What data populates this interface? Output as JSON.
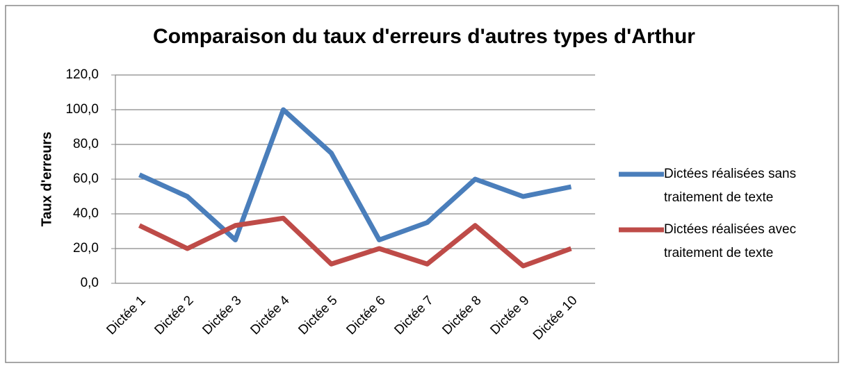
{
  "chart_data": {
    "type": "line",
    "title": "Comparaison du taux d'erreurs d'autres types d'Arthur",
    "y_label": "Taux d'erreurs",
    "categories": [
      "Dictée 1",
      "Dictée 2",
      "Dictée 3",
      "Dictée 4",
      "Dictée 5",
      "Dictée 6",
      "Dictée 7",
      "Dictée 8",
      "Dictée 9",
      "Dictée 10"
    ],
    "series": [
      {
        "name": "Dictées réalisées sans traitement de texte",
        "color": "#4a7ebb",
        "values": [
          62.5,
          50,
          25,
          100,
          75,
          25,
          35,
          60,
          50,
          55.6
        ]
      },
      {
        "name": "Dictées réalisées avec traitement de texte",
        "color": "#be4b48",
        "values": [
          33.3,
          20,
          33.3,
          37.5,
          11.1,
          20,
          11.1,
          33.3,
          10,
          20
        ]
      }
    ],
    "ylim": [
      0,
      120
    ],
    "yticks": [
      {
        "value": 0,
        "label": "0,0"
      },
      {
        "value": 20,
        "label": "20,0"
      },
      {
        "value": 40,
        "label": "40,0"
      },
      {
        "value": 60,
        "label": "60,0"
      },
      {
        "value": 80,
        "label": "80,0"
      },
      {
        "value": 100,
        "label": "100,0"
      },
      {
        "value": 120,
        "label": "120,0"
      }
    ],
    "grid": true,
    "legend": "right"
  }
}
